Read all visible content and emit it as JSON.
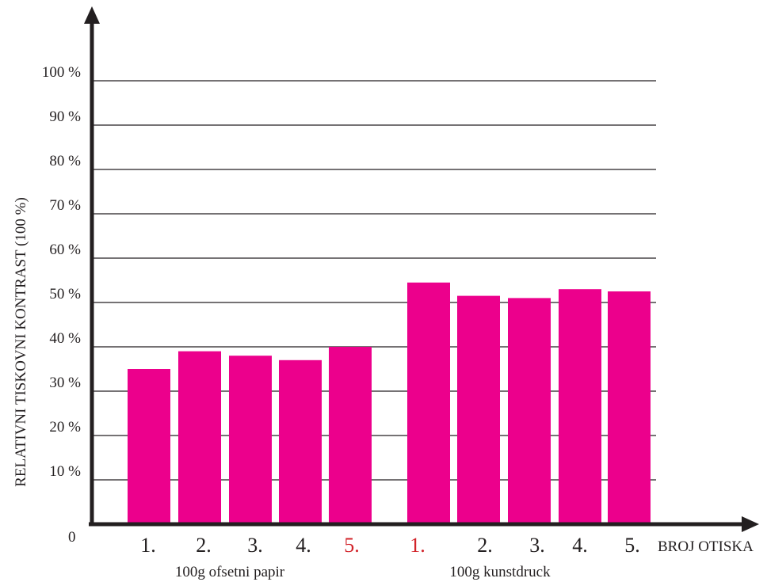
{
  "chart_data": {
    "type": "bar",
    "ylabel": "RELATIVNI TISKOVNI KONTRAST (100 %)",
    "xlabel": "BROJ OTISKA",
    "ylim": [
      0,
      100
    ],
    "y_ticks": [
      "10 %",
      "20 %",
      "30 %",
      "40 %",
      "50 %",
      "60 %",
      "70 %",
      "80 %",
      "90 %",
      "100 %"
    ],
    "zero_label": "0",
    "grid": true,
    "bar_color": "#ec008c",
    "highlight_color": "#d2232a",
    "label_color": "#231f20",
    "groups": [
      {
        "name": "100g ofsetni papir",
        "categories": [
          "1.",
          "2.",
          "3.",
          "4.",
          "5."
        ],
        "values": [
          35,
          39,
          38,
          37,
          40
        ],
        "highlight_index": 4
      },
      {
        "name": "100g  kunstdruck",
        "categories": [
          "1.",
          "2.",
          "3.",
          "4.",
          "5."
        ],
        "values": [
          54.5,
          51.5,
          51,
          53,
          52.5
        ],
        "highlight_index": 0
      }
    ]
  }
}
